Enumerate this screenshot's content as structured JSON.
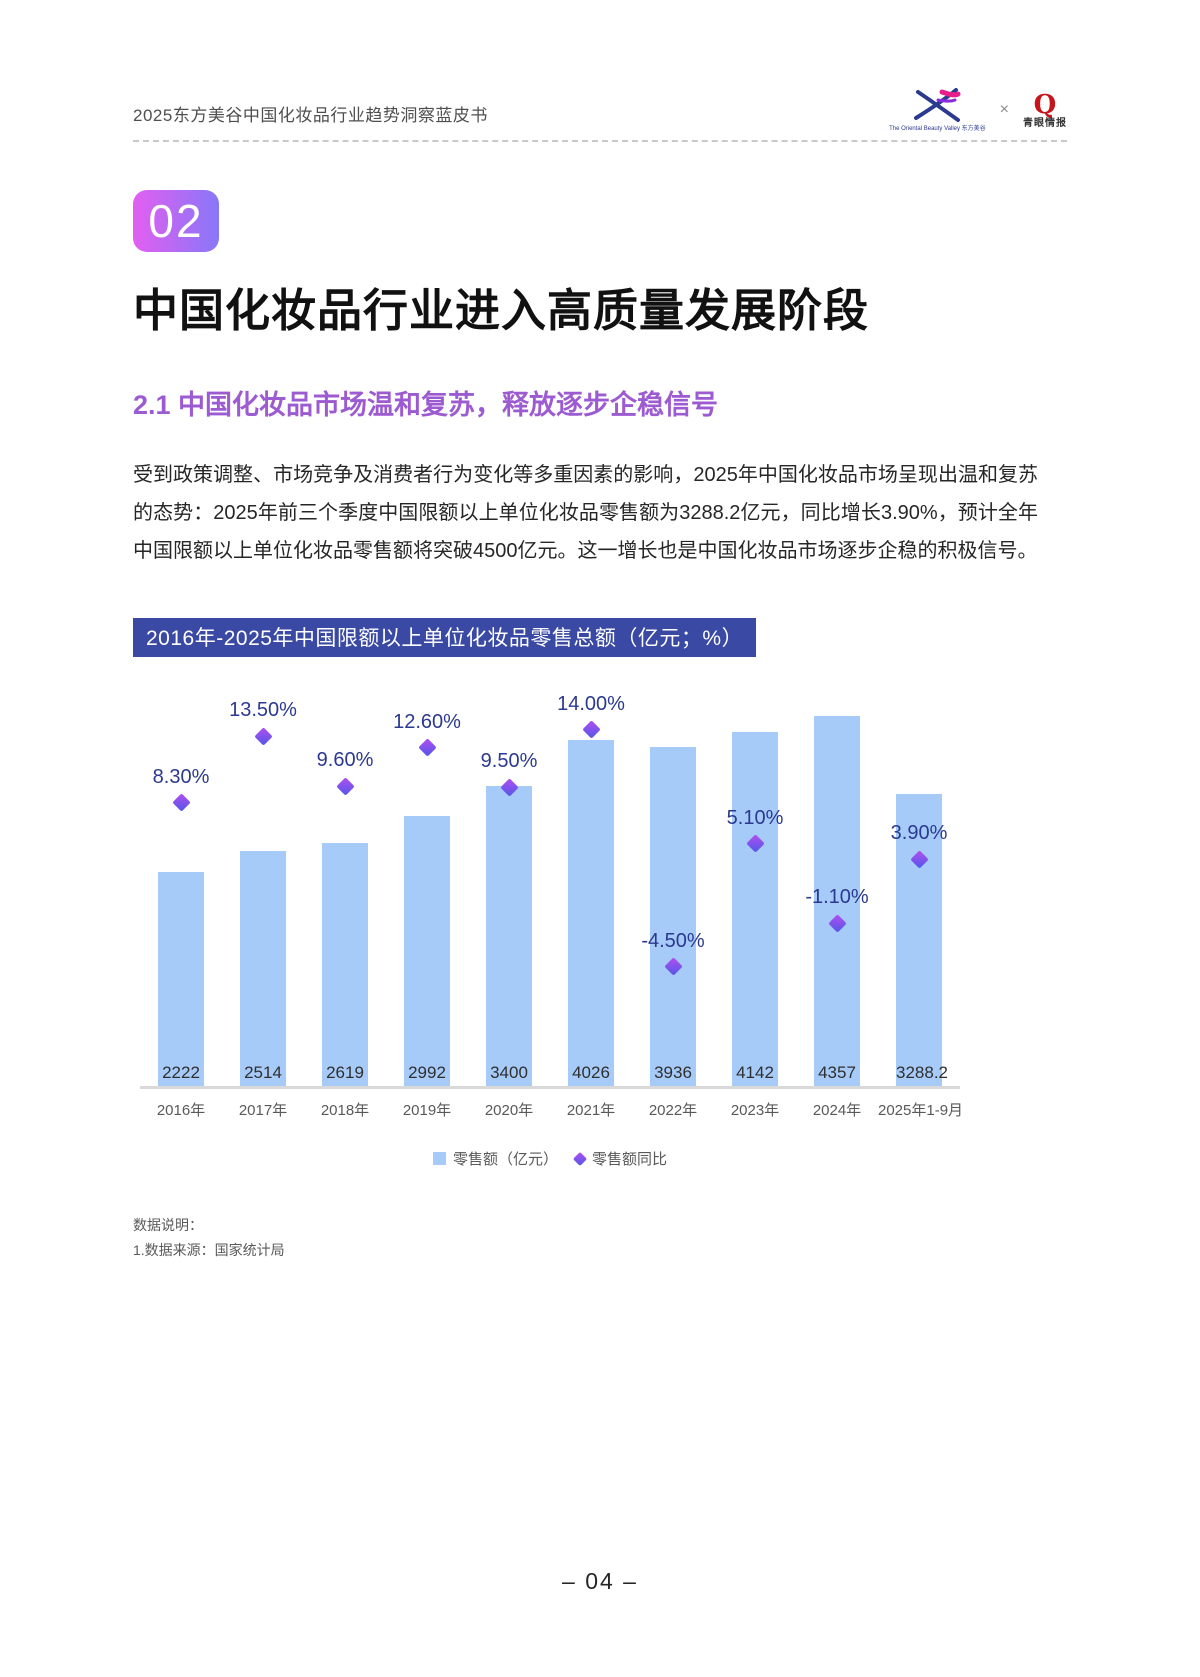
{
  "header": {
    "title": "2025东方美谷中国化妆品行业趋势洞察蓝皮书",
    "separator": "×",
    "obv_logo_caption": "The Oriental Beauty Valley 东方美谷",
    "qy_logo_letter": "Q",
    "qy_logo_caption": "青眼情报"
  },
  "section": {
    "number": "02",
    "title": "中国化妆品行业进入高质量发展阶段",
    "subtitle": "2.1 中国化妆品市场温和复苏，释放逐步企稳信号",
    "paragraph": "受到政策调整、市场竞争及消费者行为变化等多重因素的影响，2025年中国化妆品市场呈现出温和复苏的态势：2025年前三个季度中国限额以上单位化妆品零售额为3288.2亿元，同比增长3.90%，预计全年中国限额以上单位化妆品零售额将突破4500亿元。这一增长也是中国化妆品市场逐步企稳的积极信号。"
  },
  "chart_data": {
    "type": "bar",
    "title": "2016年-2025年中国限额以上单位化妆品零售总额（亿元；%）",
    "categories": [
      "2016年",
      "2017年",
      "2018年",
      "2019年",
      "2020年",
      "2021年",
      "2022年",
      "2023年",
      "2024年",
      "2025年1-9月"
    ],
    "series": [
      {
        "name": "零售额（亿元）",
        "kind": "bar",
        "values": [
          2222,
          2514,
          2619,
          2992,
          3400,
          4026,
          3936,
          4142,
          4357,
          3288.2
        ]
      },
      {
        "name": "零售额同比",
        "kind": "scatter",
        "values": [
          8.3,
          13.5,
          9.6,
          12.6,
          9.5,
          14.0,
          -4.5,
          5.1,
          -1.1,
          3.9
        ],
        "labels": [
          "8.30%",
          "13.50%",
          "9.60%",
          "12.60%",
          "9.50%",
          "14.00%",
          "-4.50%",
          "5.10%",
          "-1.10%",
          "3.90%"
        ]
      }
    ],
    "value_axis_range": [
      0,
      4500
    ],
    "pct_axis_range": [
      -10,
      16
    ],
    "grid": false,
    "legend_position": "bottom"
  },
  "colors": {
    "bar": "#A6CBF8",
    "marker_from": "#B44DF0",
    "marker_to": "#5158E8",
    "pct_label": "#2B3990",
    "title_bar_bg": "#3A49A3",
    "accent_purple": "#9D5BD2",
    "badge_from": "#E25FF0",
    "badge_to": "#8877F8"
  },
  "notes": {
    "label": "数据说明：",
    "source": "1.数据来源：国家统计局"
  },
  "page_number": "– 04 –"
}
